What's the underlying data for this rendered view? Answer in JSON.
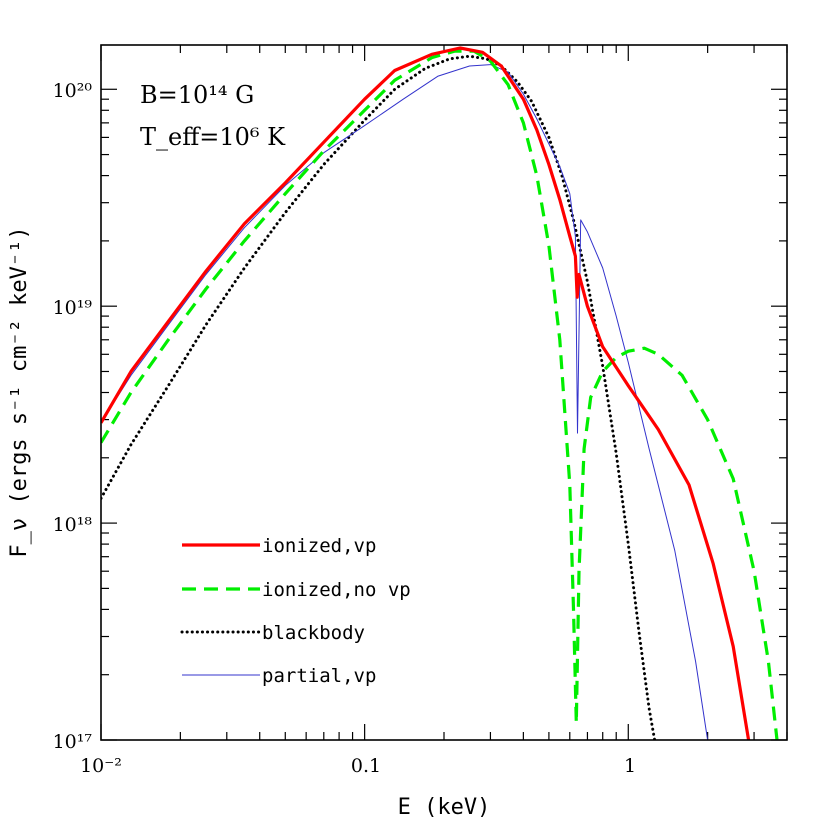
{
  "chart_data": {
    "type": "line",
    "xlabel": "E (keV)",
    "ylabel": "F_ν (ergs s⁻¹ cm⁻² keV⁻¹)",
    "xlim": [
      0.01,
      4.0
    ],
    "ylim": [
      1e+17,
      1.6e+20
    ],
    "x_scale": "log",
    "y_scale": "log",
    "x_tick_labels": [
      "10⁻²",
      "0.1",
      "1"
    ],
    "y_tick_labels": [
      "10¹⁷",
      "10¹⁸",
      "10¹⁹",
      "10²⁰"
    ],
    "annotations": [
      "B=10¹⁴ G",
      "T_eff=10⁶ K"
    ],
    "legend_placement": "bottom-left",
    "series": [
      {
        "name": "ionized,vp",
        "color": "#ff0000",
        "style": "solid-thick",
        "x": [
          0.01,
          0.013,
          0.018,
          0.025,
          0.035,
          0.05,
          0.07,
          0.1,
          0.13,
          0.18,
          0.23,
          0.28,
          0.33,
          0.4,
          0.45,
          0.5,
          0.55,
          0.6,
          0.63,
          0.64,
          0.65,
          0.7,
          0.8,
          1.0,
          1.3,
          1.7,
          2.1,
          2.5,
          2.9
        ],
        "y": [
          2.9e+18,
          5e+18,
          8.5e+18,
          1.45e+19,
          2.4e+19,
          3.7e+19,
          5.7e+19,
          9e+19,
          1.22e+20,
          1.45e+20,
          1.55e+20,
          1.48e+20,
          1.28e+20,
          9e+19,
          6.5e+19,
          4.5e+19,
          3.1e+19,
          2.1e+19,
          1.7e+19,
          1.1e+19,
          1.4e+19,
          1e+19,
          6.5e+18,
          4.3e+18,
          2.7e+18,
          1.5e+18,
          6.5e+17,
          2.7e+17,
          9e+16
        ]
      },
      {
        "name": "ionized,no vp",
        "color": "#00ee00",
        "style": "dashed-thick",
        "x": [
          0.01,
          0.013,
          0.018,
          0.025,
          0.035,
          0.05,
          0.07,
          0.1,
          0.13,
          0.18,
          0.22,
          0.26,
          0.3,
          0.35,
          0.4,
          0.45,
          0.5,
          0.55,
          0.6,
          0.62,
          0.635,
          0.65,
          0.68,
          0.72,
          0.8,
          0.9,
          1.0,
          1.15,
          1.3,
          1.6,
          2.0,
          2.5,
          3.0,
          3.4,
          3.7
        ],
        "y": [
          2.35e+18,
          4e+18,
          7e+18,
          1.2e+19,
          2e+19,
          3.3e+19,
          5.2e+19,
          8e+19,
          1.1e+20,
          1.4e+20,
          1.5e+20,
          1.5e+20,
          1.35e+20,
          1.05e+20,
          7e+19,
          4e+19,
          1.9e+19,
          7e+18,
          1.5e+18,
          4e+17,
          1.2e+17,
          6e+17,
          2.2e+18,
          3.8e+18,
          5e+18,
          5.8e+18,
          6.2e+18,
          6.4e+18,
          6e+18,
          4.8e+18,
          3e+18,
          1.6e+18,
          6e+17,
          2.3e+17,
          9e+16
        ]
      },
      {
        "name": "blackbody",
        "color": "#000000",
        "style": "dotted",
        "x": [
          0.01,
          0.013,
          0.018,
          0.025,
          0.035,
          0.05,
          0.07,
          0.1,
          0.13,
          0.17,
          0.21,
          0.25,
          0.29,
          0.33,
          0.38,
          0.43,
          0.5,
          0.56,
          0.62,
          0.7,
          0.8,
          0.9,
          1.0,
          1.1,
          1.2,
          1.3
        ],
        "y": [
          1.3e+18,
          2.3e+18,
          4.3e+18,
          8.2e+18,
          1.5e+19,
          2.7e+19,
          4.5e+19,
          7.2e+19,
          1e+20,
          1.25e+20,
          1.38e+20,
          1.42e+20,
          1.38e+20,
          1.28e+20,
          1.08e+20,
          8.8e+19,
          6e+19,
          4e+19,
          2.5e+19,
          1.3e+19,
          5.3e+18,
          2.1e+18,
          8e+17,
          3.1e+17,
          1.4e+17,
          8e+16
        ]
      },
      {
        "name": "partial,vp",
        "color": "#3333cc",
        "style": "solid-thin",
        "x": [
          0.01,
          0.013,
          0.018,
          0.025,
          0.035,
          0.05,
          0.07,
          0.1,
          0.14,
          0.19,
          0.25,
          0.3,
          0.35,
          0.4,
          0.45,
          0.5,
          0.55,
          0.6,
          0.63,
          0.642,
          0.66,
          0.7,
          0.8,
          0.9,
          1.0,
          1.2,
          1.5,
          1.8,
          2.0
        ],
        "y": [
          2.9e+18,
          4.8e+18,
          8.2e+18,
          1.4e+19,
          2.3e+19,
          3.6e+19,
          5.1e+19,
          6.8e+19,
          9e+19,
          1.15e+20,
          1.28e+20,
          1.3e+20,
          1.2e+20,
          9.5e+19,
          7.3e+19,
          5.6e+19,
          4.4e+19,
          3.3e+19,
          2.1e+19,
          2.6e+18,
          2.5e+19,
          2.2e+19,
          1.5e+19,
          9e+18,
          5.5e+18,
          2.2e+18,
          7.5e+17,
          2.3e+17,
          1e+17
        ]
      }
    ]
  }
}
